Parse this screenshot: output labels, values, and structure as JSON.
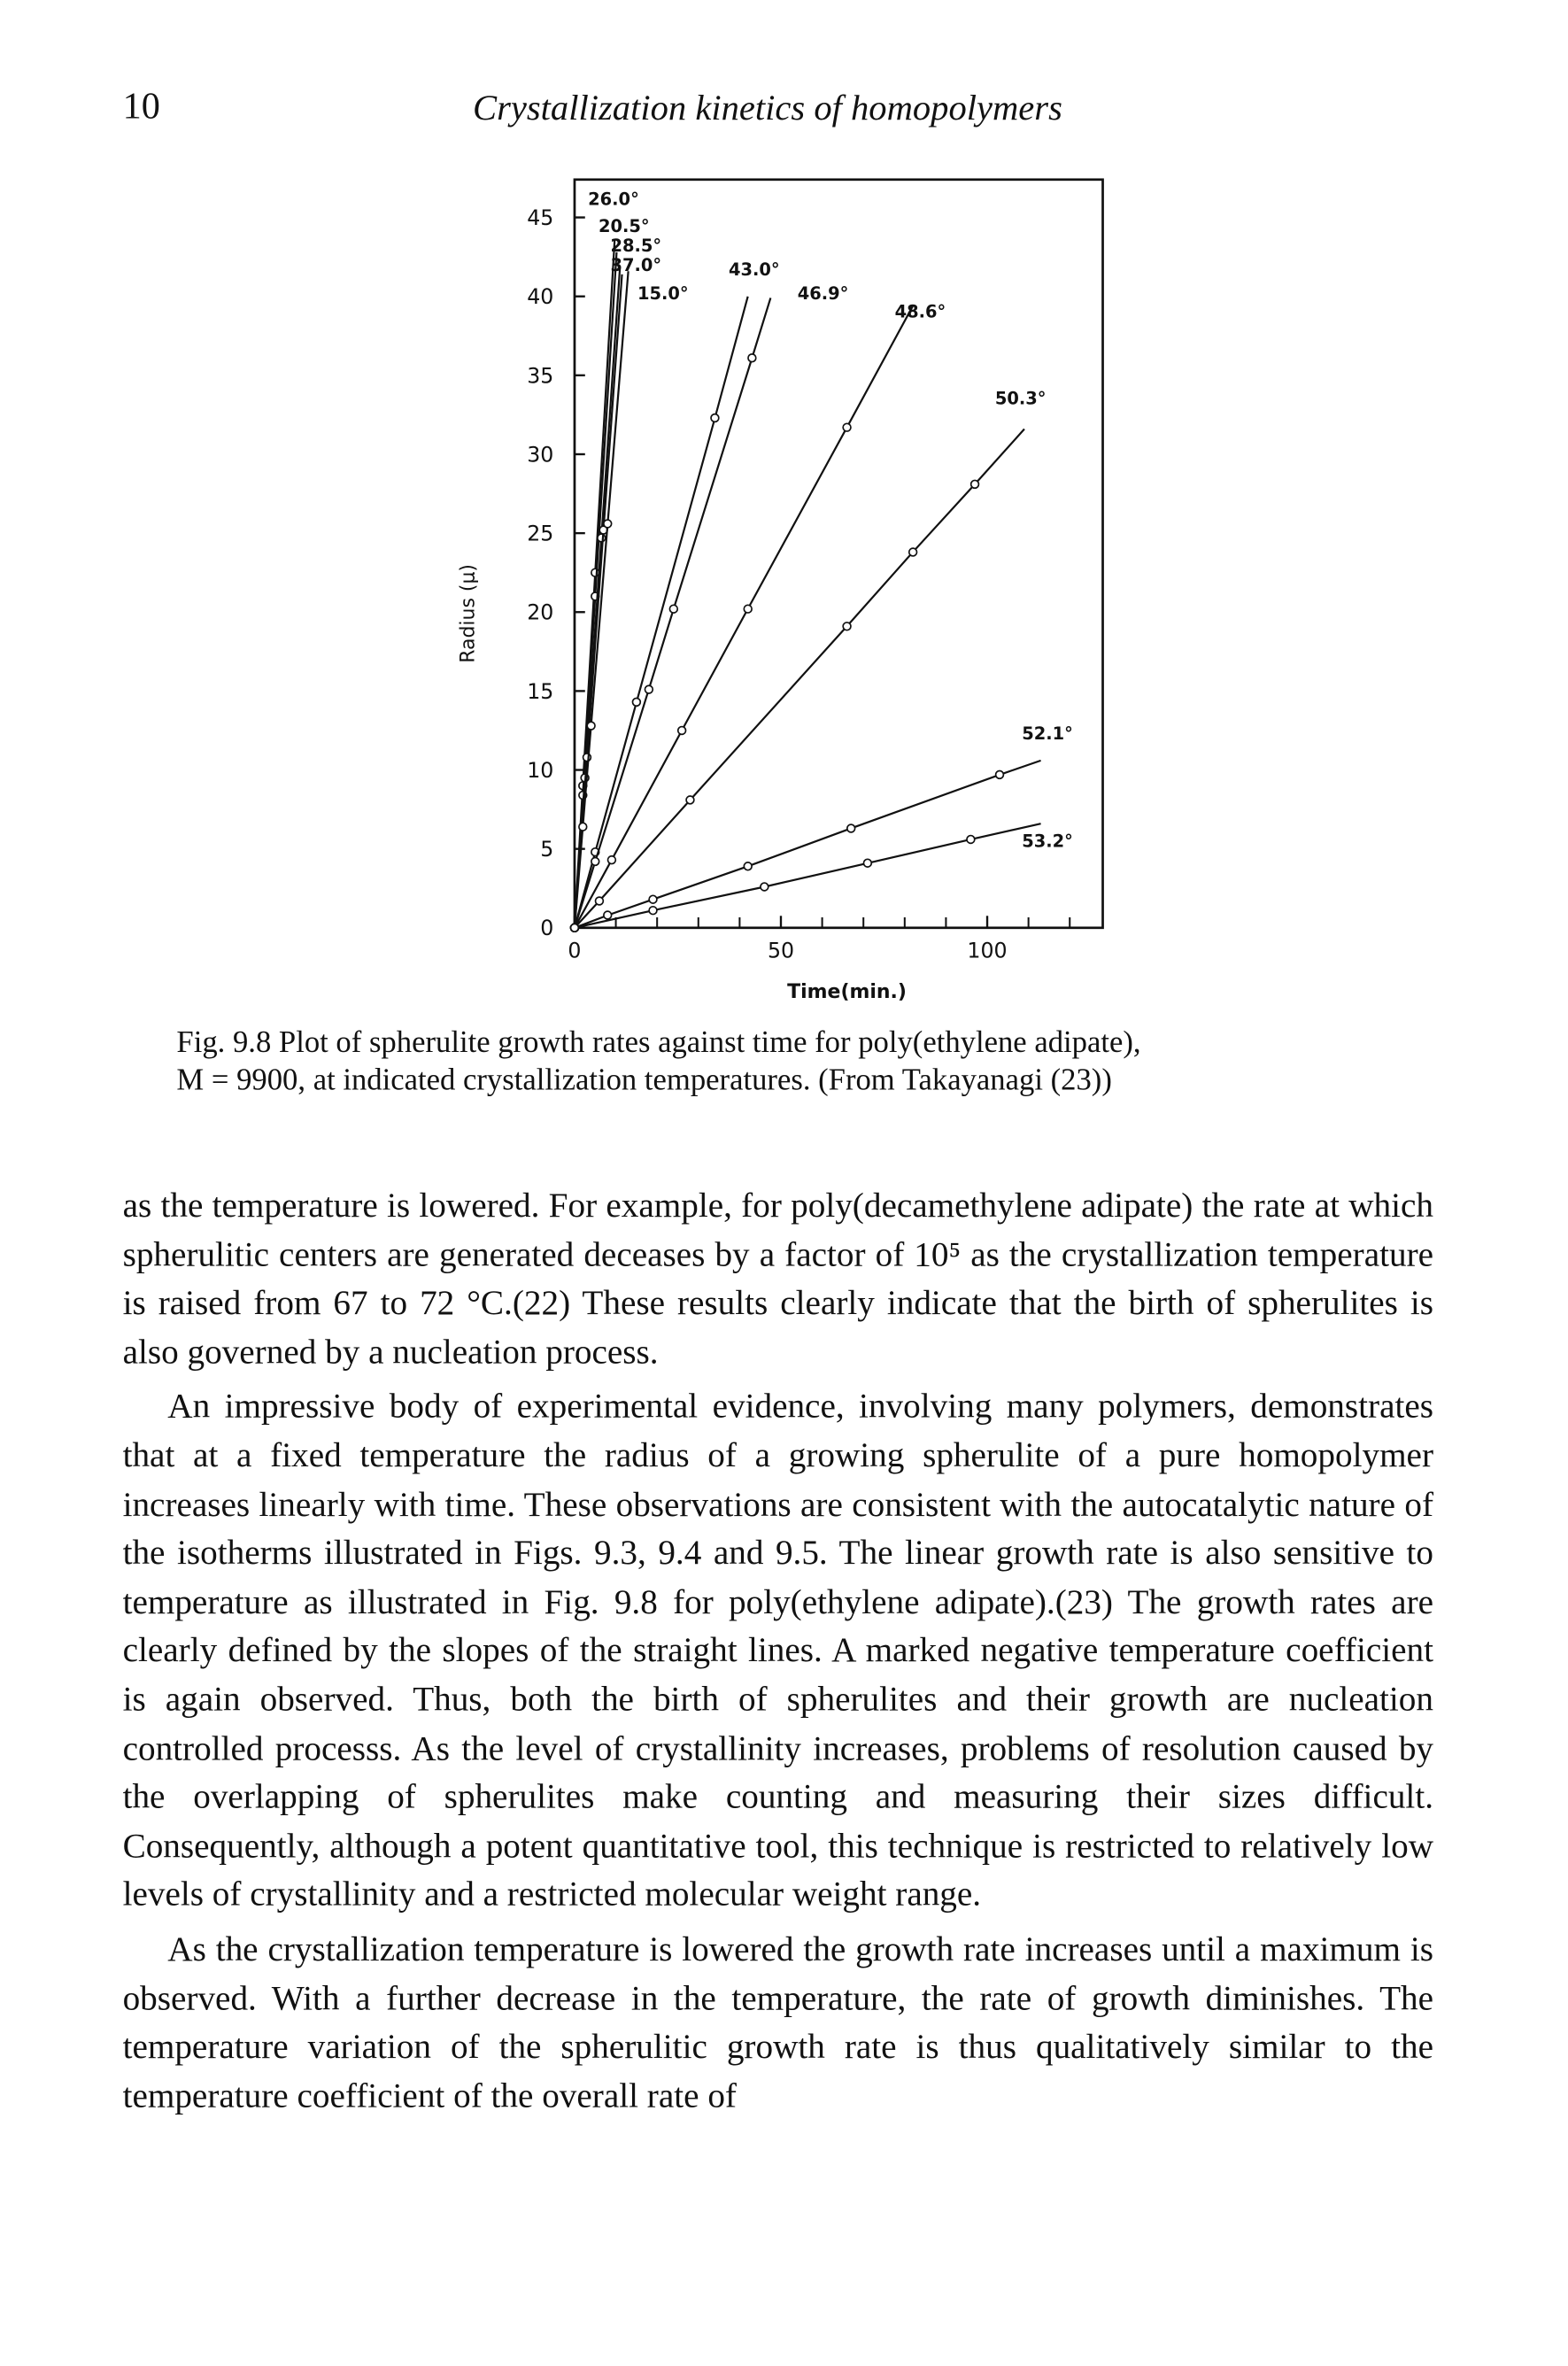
{
  "header": {
    "page_number": "10",
    "running_title": "Crystallization kinetics of homopolymers"
  },
  "chart_data": {
    "type": "line",
    "x_label": "Time(min.)",
    "y_label": "Radius (μ)",
    "xlim": [
      0,
      128
    ],
    "ylim": [
      0,
      47.4
    ],
    "xticks": [
      0,
      50,
      100
    ],
    "xminorticks": [
      10,
      20,
      30,
      40,
      60,
      70,
      80,
      90,
      110,
      120
    ],
    "yticks": [
      0,
      5,
      10,
      15,
      20,
      25,
      30,
      35,
      40,
      45
    ],
    "color": "#111111",
    "series": [
      {
        "name": "26.0°",
        "x": [
          0,
          2,
          5
        ],
        "values": [
          0,
          9,
          22.5
        ],
        "line_end": {
          "x": 9.7,
          "y": 43.6
        }
      },
      {
        "name": "20.5°",
        "x": [
          0,
          2,
          5
        ],
        "values": [
          0,
          8.4,
          21
        ],
        "line_end": {
          "x": 10.2,
          "y": 42.8
        }
      },
      {
        "name": "28.5°",
        "x": [
          0,
          2.5,
          6.5
        ],
        "values": [
          0,
          9.5,
          24.7
        ],
        "line_end": {
          "x": 11,
          "y": 41.8
        }
      },
      {
        "name": "37.0°",
        "x": [
          0,
          3,
          7
        ],
        "values": [
          0,
          10.8,
          25.2
        ],
        "line_end": {
          "x": 11.5,
          "y": 41.4
        }
      },
      {
        "name": "15.0°",
        "x": [
          0,
          2,
          4,
          8
        ],
        "values": [
          0,
          6.4,
          12.8,
          25.6
        ],
        "line_end": {
          "x": 13,
          "y": 41.6
        }
      },
      {
        "name": "43.0°",
        "x": [
          0,
          5,
          15,
          34
        ],
        "values": [
          0,
          4.8,
          14.3,
          32.3
        ],
        "line_end": {
          "x": 42,
          "y": 40
        }
      },
      {
        "name": "46.9°",
        "x": [
          0,
          5,
          18,
          24,
          43
        ],
        "values": [
          0,
          4.2,
          15.1,
          20.2,
          36.1
        ],
        "line_end": {
          "x": 47.5,
          "y": 39.9
        }
      },
      {
        "name": "48.6°",
        "x": [
          0,
          9,
          26,
          42,
          66
        ],
        "values": [
          0,
          4.3,
          12.5,
          20.2,
          31.7
        ],
        "line_end": {
          "x": 82,
          "y": 39.4
        }
      },
      {
        "name": "50.3°",
        "x": [
          0,
          6,
          28,
          66,
          82,
          97
        ],
        "values": [
          0,
          1.7,
          8.1,
          19.1,
          23.8,
          28.1
        ],
        "line_end": {
          "x": 109,
          "y": 31.6
        }
      },
      {
        "name": "52.1°",
        "x": [
          0,
          8,
          19,
          42,
          67,
          103
        ],
        "values": [
          0,
          0.8,
          1.8,
          3.9,
          6.3,
          9.7
        ],
        "line_end": {
          "x": 113,
          "y": 10.6
        }
      },
      {
        "name": "53.2°",
        "x": [
          0,
          19,
          46,
          71,
          96
        ],
        "values": [
          0,
          1.1,
          2.6,
          4.1,
          5.6
        ],
        "line_end": {
          "x": 113,
          "y": 6.6
        }
      }
    ]
  },
  "caption": {
    "lines": [
      "Fig. 9.8 Plot of spherulite growth rates against time for poly(ethylene adipate),",
      "M = 9900, at indicated crystallization temperatures. (From Takayanagi (23))"
    ]
  },
  "body": {
    "paragraphs": [
      "as the temperature is lowered. For example, for poly(decamethylene adipate) the rate at which spherulitic centers are generated deceases by a factor of 10⁵ as the crystallization temperature is raised from 67 to 72 °C.(22) These results clearly indicate that the birth of spherulites is also governed by a nucleation process.",
      "An impressive body of experimental evidence, involving many polymers, demonstrates that at a fixed temperature the radius of a growing spherulite of a pure homopolymer increases linearly with time. These observations are consistent with the autocatalytic nature of the isotherms illustrated in Figs. 9.3, 9.4 and 9.5. The linear growth rate is also sensitive to temperature as illustrated in Fig. 9.8 for poly(ethylene adipate).(23) The growth rates are clearly defined by the slopes of the straight lines. A marked negative temperature coefficient is again observed. Thus, both the birth of spherulites and their growth are nucleation controlled processs. As the level of crystallinity increases, problems of resolution caused by the overlapping of spherulites make counting and measuring their sizes difficult. Consequently, although a potent quantitative tool, this technique is restricted to relatively low levels of crystallinity and a restricted molecular weight range.",
      "As the crystallization temperature is lowered the growth rate increases until a maximum is observed. With a further decrease in the temperature, the rate of growth diminishes. The temperature variation of the spherulitic growth rate is thus qualitatively similar to the temperature coefficient of the overall rate of"
    ]
  }
}
